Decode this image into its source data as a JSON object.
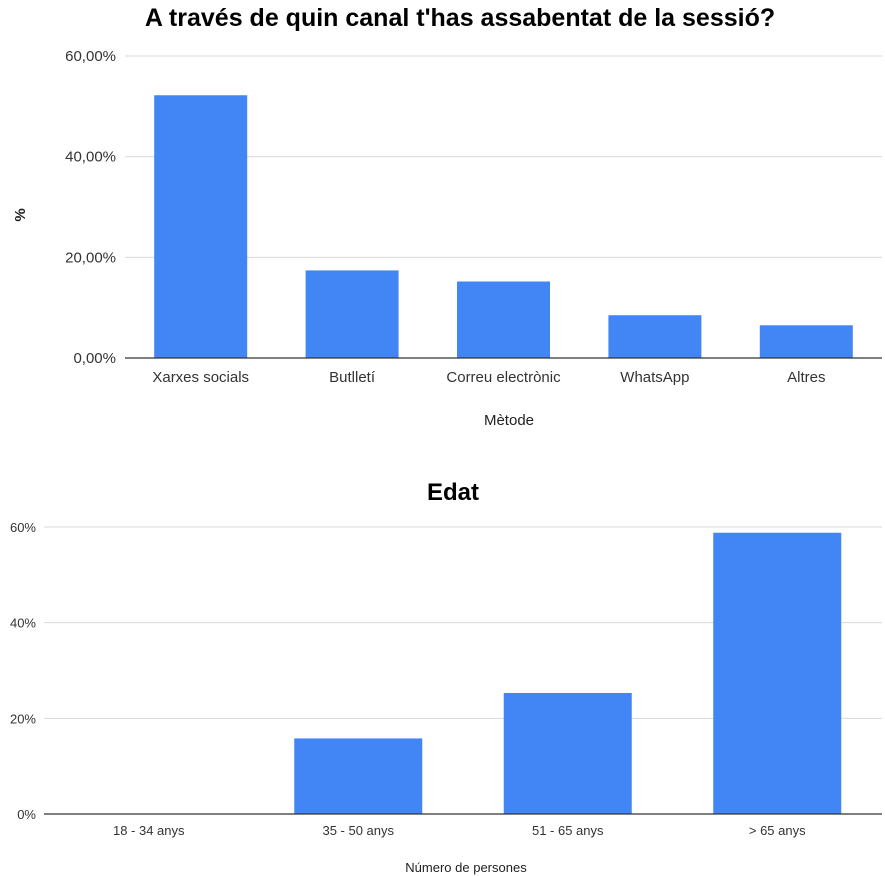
{
  "chart_data": [
    {
      "type": "bar",
      "title": "A través de quin canal t'has assabentat de la sessió?",
      "xlabel": "Mètode",
      "ylabel": "%",
      "categories": [
        "Xarxes socials",
        "Butlletí",
        "Correu electrònic",
        "WhatsApp",
        "Altres"
      ],
      "values": [
        52.2,
        17.4,
        15.2,
        8.5,
        6.5
      ],
      "ylim": [
        0,
        60
      ],
      "yticks": [
        "0,00%",
        "20,00%",
        "40,00%",
        "60,00%"
      ],
      "grid": true,
      "color": "#4285f4"
    },
    {
      "type": "bar",
      "title": "Edat",
      "xlabel": "Número de persones",
      "ylabel": "",
      "categories": [
        "18 - 34 anys",
        "35 - 50 anys",
        "51 - 65 anys",
        "> 65 anys"
      ],
      "values": [
        0,
        15.8,
        25.3,
        58.8
      ],
      "ylim": [
        0,
        60
      ],
      "yticks": [
        "0%",
        "20%",
        "40%",
        "60%"
      ],
      "grid": true,
      "color": "#4285f4"
    }
  ]
}
